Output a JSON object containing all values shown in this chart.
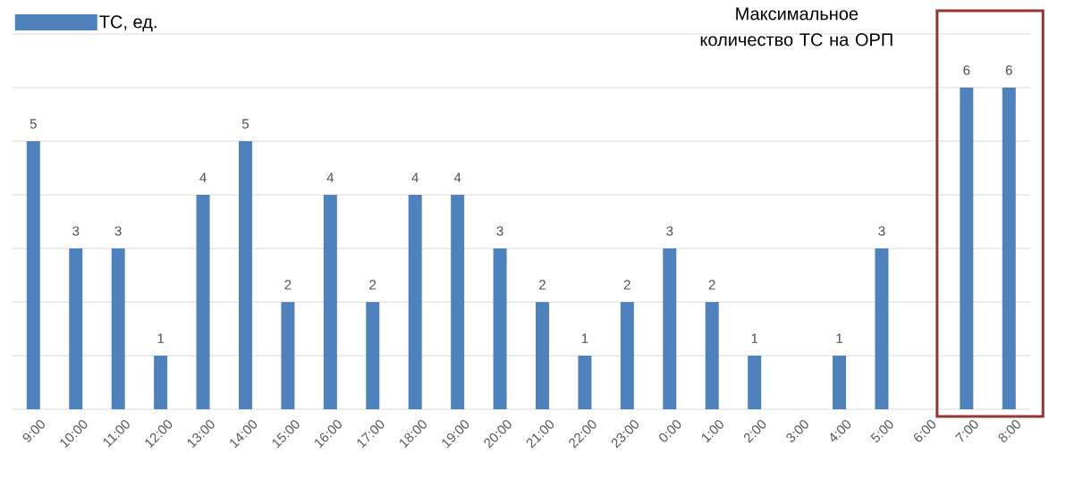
{
  "chart_data": {
    "type": "bar",
    "categories": [
      "9:00",
      "10:00",
      "11:00",
      "12:00",
      "13:00",
      "14:00",
      "15:00",
      "16:00",
      "17:00",
      "18:00",
      "19:00",
      "20:00",
      "21:00",
      "22:00",
      "23:00",
      "0:00",
      "1:00",
      "2:00",
      "3:00",
      "4:00",
      "5:00",
      "6:00",
      "7:00",
      "8:00"
    ],
    "series": [
      {
        "name": "ТС, ед.",
        "color": "#4f81bd",
        "values": [
          5,
          3,
          3,
          1,
          4,
          5,
          2,
          4,
          2,
          4,
          4,
          3,
          2,
          1,
          2,
          3,
          2,
          1,
          null,
          1,
          3,
          null,
          6,
          6
        ]
      }
    ],
    "ylim": [
      0,
      7
    ],
    "yticks": [
      {
        "value": 0,
        "label": null
      },
      {
        "value": 1,
        "label": null
      },
      {
        "value": 2,
        "label": null
      },
      {
        "value": 3,
        "label": null
      },
      {
        "value": 4,
        "label": null
      },
      {
        "value": 5,
        "label": null
      },
      {
        "value": 6,
        "label": null
      },
      {
        "value": 7,
        "label": null
      }
    ],
    "tick_labels": "x",
    "grid": "y",
    "legend": "top left",
    "data_labels": true,
    "annotations": [
      "Максимальное количество ТС на ОРП"
    ]
  }
}
